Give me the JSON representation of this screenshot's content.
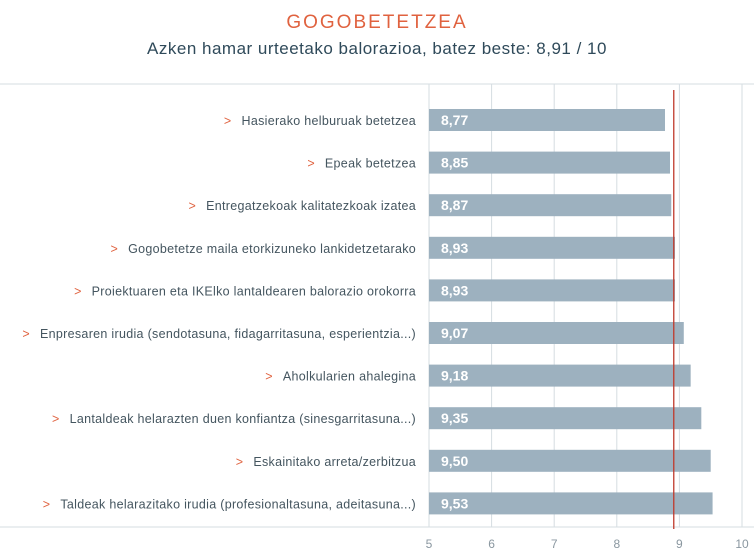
{
  "title": "GOGOBETETZEA",
  "subtitle": "Azken hamar urteetako balorazioa, batez beste: 8,91 / 10",
  "colors": {
    "bar": "#9db1bf",
    "bar_label": "#ffffff",
    "category_text": "#44555f",
    "marker": "#e0623f",
    "average_line": "#c0392b",
    "grid": "#d5dde2",
    "tick_text": "#8a97a0"
  },
  "chart_data": {
    "type": "bar",
    "orientation": "horizontal",
    "title": "GOGOBETETZEA",
    "subtitle": "Azken hamar urteetako balorazioa, batez beste: 8,91 / 10",
    "category_marker": ">",
    "categories": [
      "Hasierako helburuak betetzea",
      "Epeak betetzea",
      "Entregatzekoak kalitatezkoak izatea",
      "Gogobetetze  maila etorkizuneko lankidetzetarako",
      "Proiektuaren eta IKElko lantaldearen balorazio orokorra",
      "Enpresaren irudia (sendotasuna, fidagarritasuna, esperientzia...)",
      "Aholkularien ahalegina",
      "Lantaldeak helarazten duen konfiantza (sinesgarritasuna...)",
      "Eskainitako arreta/zerbitzua",
      "Taldeak helarazitako irudia (profesionaltasuna, adeitasuna...)"
    ],
    "values": [
      8.77,
      8.85,
      8.87,
      8.93,
      8.93,
      9.07,
      9.18,
      9.35,
      9.5,
      9.53
    ],
    "value_labels": [
      "8,77",
      "8,85",
      "8,87",
      "8,93",
      "8,93",
      "9,07",
      "9,18",
      "9,35",
      "9,50",
      "9,53"
    ],
    "average": 8.91,
    "xlim": [
      5,
      10
    ],
    "xticks": [
      "5",
      "6",
      "7",
      "8",
      "9",
      "10"
    ],
    "xlabel": "",
    "ylabel": "",
    "grid": true
  }
}
